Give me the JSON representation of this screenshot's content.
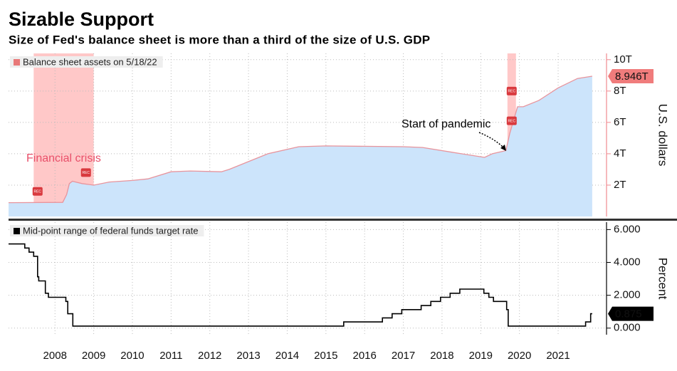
{
  "title": "Sizable Support",
  "subtitle": "Size of Fed's balance sheet is more than a third of the size of U.S. GDP",
  "chart_data": [
    {
      "type": "area",
      "legend": "Balance sheet assets on 5/18/22",
      "y_axis_label": "U.S. dollars",
      "color": "#cce4fb",
      "line_color": "#e8949c",
      "axis_color": "#f08a90",
      "x": [
        2007.3,
        2008.7,
        2008.8,
        2008.87,
        2008.95,
        2009.2,
        2009.5,
        2009.9,
        2010.5,
        2010.9,
        2011.5,
        2012.0,
        2012.8,
        2013.0,
        2013.5,
        2014.0,
        2014.8,
        2015.5,
        2017.5,
        2018.0,
        2019.0,
        2019.6,
        2019.8,
        2020.15,
        2020.25,
        2020.45,
        2020.6,
        2021.0,
        2021.5,
        2022.0,
        2022.38
      ],
      "values": [
        0.88,
        0.9,
        1.4,
        2.1,
        2.25,
        2.1,
        2.0,
        2.2,
        2.3,
        2.4,
        2.85,
        2.9,
        2.85,
        3.0,
        3.5,
        4.0,
        4.45,
        4.5,
        4.45,
        4.4,
        4.0,
        3.77,
        4.0,
        4.2,
        5.3,
        7.0,
        7.0,
        7.4,
        8.2,
        8.8,
        8.946
      ],
      "last_label": "8.946T",
      "xlim": [
        2007.3,
        2022.75
      ],
      "ylim": [
        0,
        10.4
      ],
      "yticks": [
        {
          "value": 2,
          "label": "2T"
        },
        {
          "value": 4,
          "label": "4T"
        },
        {
          "value": 6,
          "label": "6T"
        },
        {
          "value": 8,
          "label": "8T"
        },
        {
          "value": 10,
          "label": "10T"
        }
      ],
      "shading": [
        [
          2007.95,
          2009.5
        ],
        [
          2020.19,
          2020.41
        ]
      ],
      "shading_color": "#ff9a9a",
      "rec_label": "REC",
      "rec_markers": [
        {
          "x": 2008.05,
          "y": 1.6
        },
        {
          "x": 2009.3,
          "y": 2.8
        },
        {
          "x": 2020.3,
          "y": 8.0
        },
        {
          "x": 2020.3,
          "y": 6.1
        }
      ],
      "annotations": [
        "Financial crisis",
        "Start of pandemic"
      ],
      "grid": true
    },
    {
      "type": "line",
      "legend": "Mid-point range of federal funds target rate",
      "y_axis_label": "Percent",
      "color": "#000000",
      "axis_color": "#000000",
      "x": [
        2007.3,
        2007.72,
        2007.72,
        2007.83,
        2007.83,
        2007.95,
        2007.95,
        2008.05,
        2008.05,
        2008.08,
        2008.08,
        2008.25,
        2008.25,
        2008.33,
        2008.33,
        2008.78,
        2008.78,
        2008.83,
        2008.83,
        2008.96,
        2008.96,
        2015.96,
        2015.96,
        2016.96,
        2016.96,
        2017.21,
        2017.21,
        2017.46,
        2017.46,
        2017.96,
        2017.96,
        2018.21,
        2018.21,
        2018.46,
        2018.46,
        2018.71,
        2018.71,
        2018.96,
        2018.96,
        2019.58,
        2019.58,
        2019.71,
        2019.71,
        2019.83,
        2019.83,
        2020.17,
        2020.17,
        2020.21,
        2020.21,
        2022.21,
        2022.21,
        2022.34,
        2022.34,
        2022.38
      ],
      "values": [
        5.125,
        5.125,
        4.875,
        4.875,
        4.625,
        4.625,
        4.375,
        4.375,
        3.125,
        3.125,
        2.875,
        2.875,
        2.125,
        2.125,
        1.875,
        1.875,
        1.625,
        1.625,
        0.875,
        0.875,
        0.125,
        0.125,
        0.375,
        0.375,
        0.625,
        0.625,
        0.875,
        0.875,
        1.125,
        1.125,
        1.375,
        1.375,
        1.625,
        1.625,
        1.875,
        1.875,
        2.125,
        2.125,
        2.375,
        2.375,
        2.125,
        2.125,
        1.875,
        1.875,
        1.625,
        1.625,
        1.125,
        1.125,
        0.125,
        0.125,
        0.375,
        0.375,
        0.875,
        0.875
      ],
      "xlim": [
        2007.3,
        2022.75
      ],
      "ylim": [
        -0.4,
        6.45
      ],
      "yticks": [
        {
          "value": 0,
          "label": "0.000"
        },
        {
          "value": 2,
          "label": "2.000"
        },
        {
          "value": 4,
          "label": "4.000"
        },
        {
          "value": 6,
          "label": "6.000"
        }
      ],
      "xticks": [
        {
          "value": 2008.5,
          "label": "2008"
        },
        {
          "value": 2009.5,
          "label": "2009"
        },
        {
          "value": 2010.5,
          "label": "2010"
        },
        {
          "value": 2011.5,
          "label": "2011"
        },
        {
          "value": 2012.5,
          "label": "2012"
        },
        {
          "value": 2013.5,
          "label": "2013"
        },
        {
          "value": 2014.5,
          "label": "2014"
        },
        {
          "value": 2015.5,
          "label": "2015"
        },
        {
          "value": 2016.5,
          "label": "2016"
        },
        {
          "value": 2017.5,
          "label": "2017"
        },
        {
          "value": 2018.5,
          "label": "2018"
        },
        {
          "value": 2019.5,
          "label": "2019"
        },
        {
          "value": 2020.5,
          "label": "2020"
        },
        {
          "value": 2021.5,
          "label": "2021"
        }
      ],
      "grid": true
    }
  ]
}
